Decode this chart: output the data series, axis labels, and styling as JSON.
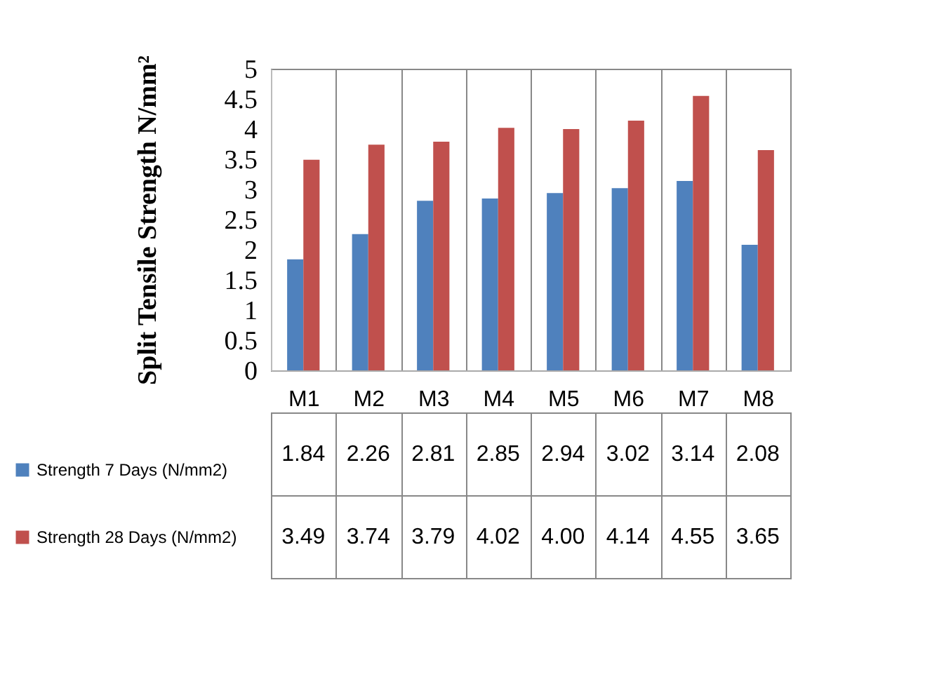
{
  "chart_data": {
    "type": "bar",
    "ylabel": "Split  Tensile Strength N/mm²",
    "categories": [
      "M1",
      "M2",
      "M3",
      "M4",
      "M5",
      "M6",
      "M7",
      "M8"
    ],
    "ylim": [
      0,
      5
    ],
    "yticks": [
      0,
      0.5,
      1,
      1.5,
      2,
      2.5,
      3,
      3.5,
      4,
      4.5,
      5
    ],
    "grid": false,
    "legend": "left",
    "series": [
      {
        "name": "Strength 7 Days (N/mm2)",
        "color": "#4f81bd",
        "values": [
          1.84,
          2.26,
          2.81,
          2.85,
          2.94,
          3.02,
          3.14,
          2.08
        ],
        "value_labels": [
          "1.84",
          "2.26",
          "2.81",
          "2.85",
          "2.94",
          "3.02",
          "3.14",
          "2.08"
        ]
      },
      {
        "name": "Strength 28 Days (N/mm2)",
        "color": "#c0504d",
        "values": [
          3.49,
          3.74,
          3.79,
          4.02,
          4.0,
          4.14,
          4.55,
          3.65
        ],
        "value_labels": [
          "3.49",
          "3.74",
          "3.79",
          "4.02",
          "4.00",
          "4.14",
          "4.55",
          "3.65"
        ]
      }
    ]
  }
}
